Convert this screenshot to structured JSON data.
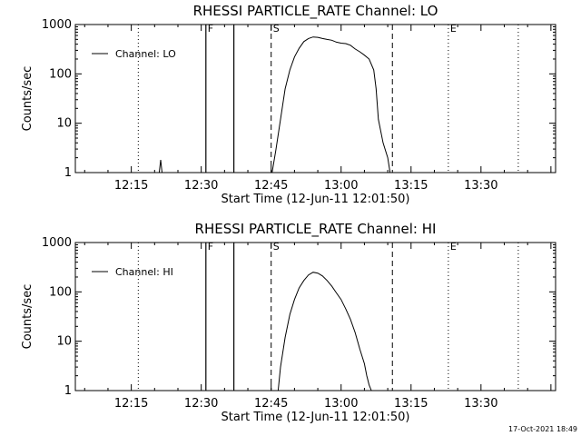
{
  "footer": {
    "timestamp": "17-Oct-2021 18:49"
  },
  "chart_data": [
    {
      "type": "line",
      "title": "RHESSI PARTICLE_RATE Channel: LO",
      "xlabel": "Start Time (12-Jun-11 12:01:50)",
      "ylabel": "Counts/sec",
      "xlim": [
        "12:03",
        "13:46"
      ],
      "ylim": [
        1,
        1000
      ],
      "yscale": "log",
      "xticks": [
        "12:15",
        "12:30",
        "12:45",
        "13:00",
        "13:15",
        "13:30"
      ],
      "yticks": [
        "1",
        "10",
        "100",
        "1000"
      ],
      "legend": {
        "position": "top-left",
        "label": "Channel: LO"
      },
      "series": [
        {
          "name": "Channel: LO",
          "x": [
            "12:21.0",
            "12:21.3",
            "12:21.6",
            "12:31.0",
            "12:37.0",
            "12:45.2",
            "12:46.0",
            "12:47.0",
            "12:48.0",
            "12:49.0",
            "12:50.0",
            "12:51.0",
            "12:52.0",
            "12:53.0",
            "12:54.0",
            "12:55.0",
            "12:56.0",
            "12:57.0",
            "12:58.0",
            "12:59.0",
            "13:00.0",
            "13:01.0",
            "13:02.0",
            "13:03.0",
            "13:04.0",
            "13:05.0",
            "13:06.0",
            "13:07.0",
            "13:07.5",
            "13:08.0",
            "13:09.0",
            "13:10.0",
            "13:10.5"
          ],
          "y": [
            1.0,
            1.8,
            1.0,
            1.0,
            1.0,
            1.0,
            2.8,
            12,
            50,
            120,
            220,
            330,
            450,
            520,
            560,
            550,
            520,
            500,
            480,
            440,
            420,
            410,
            380,
            320,
            280,
            240,
            200,
            120,
            50,
            12,
            4,
            2,
            1.0
          ],
          "spikes": [
            "12:31.0",
            "12:37.0"
          ]
        }
      ],
      "markers": [
        {
          "label": "F",
          "x": "12:31.0",
          "style": "none"
        },
        {
          "label": "S",
          "x": "12:45.0",
          "style": "dashed"
        },
        {
          "label": "",
          "x": "13:11.0",
          "style": "dashed"
        },
        {
          "label": "E",
          "x": "13:23.0",
          "style": "dotted"
        },
        {
          "label": "",
          "x": "12:16.5",
          "style": "dotted"
        },
        {
          "label": "",
          "x": "13:38.0",
          "style": "dotted"
        }
      ]
    },
    {
      "type": "line",
      "title": "RHESSI PARTICLE_RATE Channel: HI",
      "xlabel": "Start Time (12-Jun-11 12:01:50)",
      "ylabel": "Counts/sec",
      "xlim": [
        "12:03",
        "13:46"
      ],
      "ylim": [
        1,
        1000
      ],
      "yscale": "log",
      "xticks": [
        "12:15",
        "12:30",
        "12:45",
        "13:00",
        "13:15",
        "13:30"
      ],
      "yticks": [
        "1",
        "10",
        "100",
        "1000"
      ],
      "legend": {
        "position": "top-left",
        "label": "Channel: HI"
      },
      "series": [
        {
          "name": "Channel: HI",
          "x": [
            "12:46.5",
            "12:47.0",
            "12:48.0",
            "12:49.0",
            "12:50.0",
            "12:51.0",
            "12:52.0",
            "12:53.0",
            "12:54.0",
            "12:55.0",
            "12:56.0",
            "12:57.0",
            "12:58.0",
            "12:59.0",
            "13:00.0",
            "13:01.0",
            "13:02.0",
            "13:03.0",
            "13:04.0",
            "13:05.0",
            "13:05.5",
            "13:06.0",
            "13:06.5"
          ],
          "y": [
            1.0,
            3,
            12,
            35,
            70,
            120,
            170,
            220,
            250,
            240,
            210,
            170,
            130,
            95,
            70,
            45,
            28,
            15,
            7,
            3.5,
            2.0,
            1.3,
            1.0
          ],
          "spikes": [
            "12:31.0",
            "12:37.0"
          ]
        }
      ],
      "markers": [
        {
          "label": "F",
          "x": "12:31.0",
          "style": "none"
        },
        {
          "label": "S",
          "x": "12:45.0",
          "style": "dashed"
        },
        {
          "label": "",
          "x": "13:11.0",
          "style": "dashed"
        },
        {
          "label": "E",
          "x": "13:23.0",
          "style": "dotted"
        },
        {
          "label": "",
          "x": "12:16.5",
          "style": "dotted"
        },
        {
          "label": "",
          "x": "13:38.0",
          "style": "dotted"
        }
      ]
    }
  ]
}
